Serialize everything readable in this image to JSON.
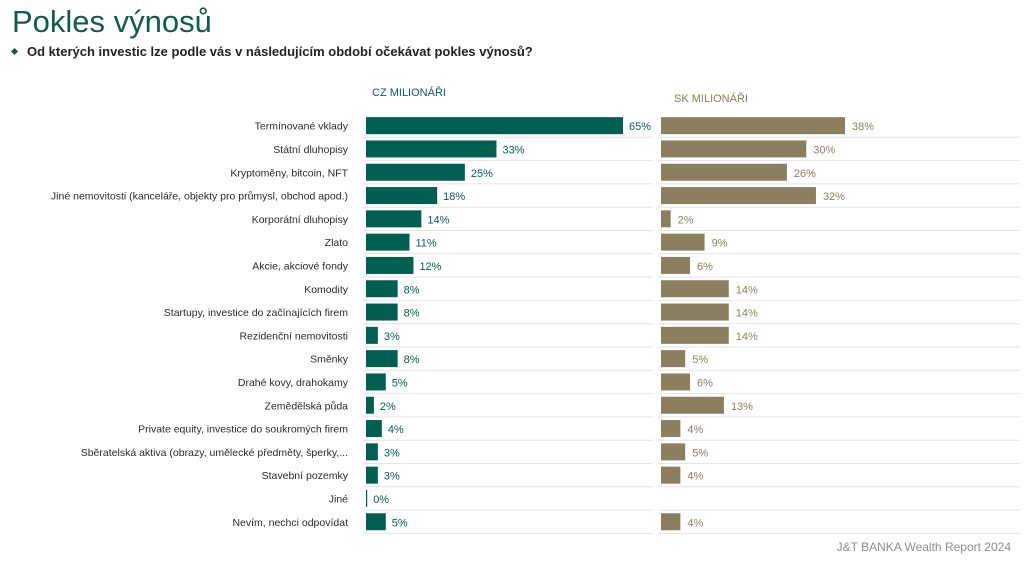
{
  "page": {
    "title": "Pokles výnosů",
    "question": "Od kterých investic lze podle vás v následujícím období očekávat pokles výnosů?",
    "footer": "J&T BANKA Wealth Report 2024"
  },
  "colors": {
    "cz": "#005f50",
    "sk": "#8c7f5f",
    "title": "#0f5c4e"
  },
  "chart_data": {
    "type": "bar",
    "orientation": "horizontal",
    "categories": [
      "Termínované vklady",
      "Státní dluhopisy",
      "Kryptoměny, bitcoin, NFT",
      "Jiné nemovitosti (kanceláře, objekty pro průmysl, obchod apod.)",
      "Korporátní dluhopisy",
      "Zlato",
      "Akcie, akciové fondy",
      "Komodity",
      "Startupy, investice do začínajících firem",
      "Rezidenční nemovitosti",
      "Směnky",
      "Drahé kovy, drahokamy",
      "Zemědělská půda",
      "Private equity, investice do soukromých firem",
      "Sběratelská aktiva (obrazy, umělecké předměty, šperky,...",
      "Stavební pozemky",
      "Jiné",
      "Nevím, nechci odpovídat"
    ],
    "series": [
      {
        "name": "CZ MILIONÁŘI",
        "values": [
          65,
          33,
          25,
          18,
          14,
          11,
          12,
          8,
          8,
          3,
          8,
          5,
          2,
          4,
          3,
          3,
          0,
          5
        ]
      },
      {
        "name": "SK MILIONÁŘI",
        "values": [
          38,
          30,
          26,
          32,
          2,
          9,
          6,
          14,
          14,
          14,
          5,
          6,
          13,
          4,
          5,
          4,
          null,
          4
        ]
      }
    ],
    "value_suffix": "%",
    "xlim": [
      0,
      100
    ],
    "grid": false
  }
}
